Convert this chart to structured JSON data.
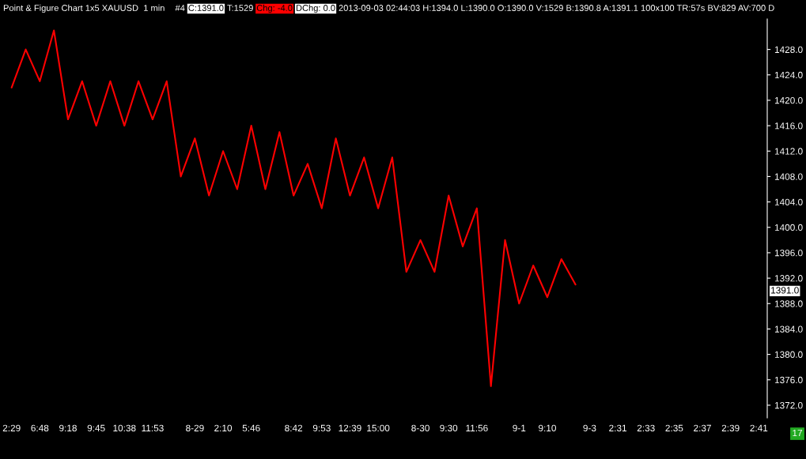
{
  "chart_data": {
    "type": "line",
    "title": "Point & Figure Chart 1x5 XAUUSD  1 min",
    "annotations": [
      "#4",
      "C:1391.0",
      "T:1529",
      "Chg: -4.0",
      "DChg: 0.0",
      "2013-09-03 02:44:03 H:1394.0 L:1390.0 O:1390.0 V:1529 B:1390.8 A:1391.1 100x100 TR:57s BV:829 AV:700 D",
      "17",
      "1391.0"
    ],
    "categories": [
      "2:29",
      null,
      "6:48",
      null,
      "9:18",
      null,
      "9:45",
      null,
      "10:38",
      null,
      "11:53",
      null,
      null,
      "8-29",
      null,
      "2:10",
      null,
      "5:46",
      null,
      null,
      "8:42",
      null,
      "9:53",
      null,
      "12:39",
      null,
      "15:00",
      null,
      null,
      "8-30",
      null,
      "9:30",
      null,
      "11:56",
      null,
      null,
      "9-1",
      null,
      "9:10",
      null,
      null,
      "9-3",
      null,
      "2:31",
      null,
      "2:33",
      null,
      "2:35",
      null,
      "2:37",
      null,
      "2:39",
      null,
      "2:41"
    ],
    "series": [
      {
        "color": "#ff0000",
        "values": [
          1422,
          1428,
          1423,
          1431,
          1417,
          1423,
          1416,
          1423,
          1416,
          1423,
          1417,
          1423,
          1408,
          1414,
          1405,
          1412,
          1406,
          1416,
          1406,
          1415,
          1405,
          1410,
          1403,
          1414,
          1405,
          1411,
          1403,
          1411,
          1393,
          1398,
          1393,
          1405,
          1397,
          1403,
          1375,
          1398,
          1388,
          1394,
          1389,
          1395,
          1391,
          null,
          null,
          null,
          null,
          null,
          null,
          null,
          null,
          null,
          null,
          null,
          null,
          null
        ]
      }
    ],
    "ylim": [
      1370,
      1432.8
    ],
    "yticks": [
      {
        "value": 1372,
        "label": "1372.0"
      },
      {
        "value": 1376,
        "label": "1376.0"
      },
      {
        "value": 1380,
        "label": "1380.0"
      },
      {
        "value": 1384,
        "label": "1384.0"
      },
      {
        "value": 1388,
        "label": "1388.0"
      },
      {
        "value": 1392,
        "label": "1392.0"
      },
      {
        "value": 1396,
        "label": "1396.0"
      },
      {
        "value": 1400,
        "label": "1400.0"
      },
      {
        "value": 1404,
        "label": "1404.0"
      },
      {
        "value": 1408,
        "label": "1408.0"
      },
      {
        "value": 1412,
        "label": "1412.0"
      },
      {
        "value": 1416,
        "label": "1416.0"
      },
      {
        "value": 1420,
        "label": "1420.0"
      },
      {
        "value": 1424,
        "label": "1424.0"
      },
      {
        "value": 1428,
        "label": "1428.0"
      }
    ],
    "grid": false,
    "legend": false,
    "marker": "none",
    "line_style": "solid"
  }
}
